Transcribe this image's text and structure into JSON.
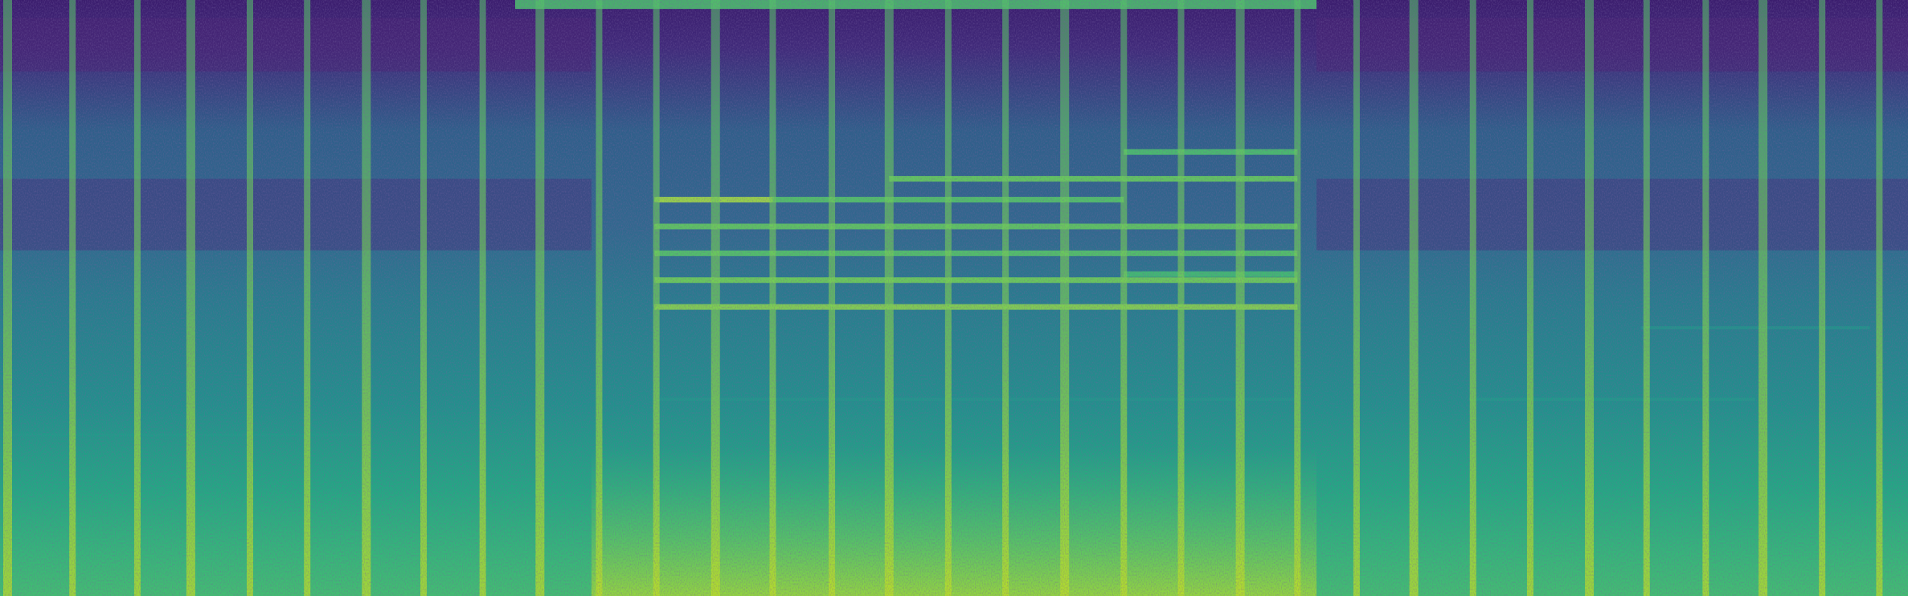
{
  "chart_data": {
    "type": "heatmap",
    "colormap": "viridis",
    "title": "",
    "xlabel": "",
    "ylabel": "",
    "axes_visible": false,
    "grid": false,
    "legend": "none",
    "colors": {
      "low": "#3b1d6e",
      "mid": "#21918c",
      "high": "#dde318"
    },
    "frequency_orientation": "low-bottom",
    "series": [
      {
        "name": "",
        "intensity_notes": {
          "background_level": 0.45,
          "high_band_level": 0.22,
          "low_band_level": 0.58
        }
      }
    ],
    "x_range": [
      0,
      1
    ],
    "y_range": [
      0,
      1
    ],
    "transients": [
      0.004,
      0.038,
      0.072,
      0.1,
      0.131,
      0.161,
      0.192,
      0.222,
      0.253,
      0.283,
      0.314,
      0.344,
      0.375,
      0.405,
      0.436,
      0.466,
      0.497,
      0.527,
      0.558,
      0.589,
      0.619,
      0.65,
      0.68,
      0.711,
      0.741,
      0.772,
      0.802,
      0.833,
      0.863,
      0.894,
      0.924,
      0.955,
      0.985
    ],
    "harmonic_segments": [
      {
        "x_start": 0.343,
        "x_end": 0.405,
        "y": 0.665,
        "intensity": 0.92
      },
      {
        "x_start": 0.343,
        "x_end": 0.68,
        "y": 0.62,
        "intensity": 0.85
      },
      {
        "x_start": 0.343,
        "x_end": 0.68,
        "y": 0.575,
        "intensity": 0.82
      },
      {
        "x_start": 0.343,
        "x_end": 0.68,
        "y": 0.53,
        "intensity": 0.88
      },
      {
        "x_start": 0.343,
        "x_end": 0.68,
        "y": 0.485,
        "intensity": 0.9
      },
      {
        "x_start": 0.405,
        "x_end": 0.589,
        "y": 0.665,
        "intensity": 0.82
      },
      {
        "x_start": 0.466,
        "x_end": 0.68,
        "y": 0.7,
        "intensity": 0.86
      },
      {
        "x_start": 0.589,
        "x_end": 0.68,
        "y": 0.745,
        "intensity": 0.8
      },
      {
        "x_start": 0.589,
        "x_end": 0.68,
        "y": 0.54,
        "intensity": 0.78
      },
      {
        "x_start": 0.0,
        "x_end": 0.19,
        "y": 0.27,
        "intensity": 0.62
      },
      {
        "x_start": 0.345,
        "x_end": 0.68,
        "y": 0.33,
        "intensity": 0.6
      },
      {
        "x_start": 0.77,
        "x_end": 0.92,
        "y": 0.33,
        "intensity": 0.62
      },
      {
        "x_start": 0.86,
        "x_end": 0.98,
        "y": 0.45,
        "intensity": 0.6
      }
    ],
    "bright_regions": [
      {
        "x_start": 0.31,
        "x_end": 0.69,
        "y_start": 0.0,
        "y_end": 0.25,
        "intensity": 0.72
      },
      {
        "x_start": 0.27,
        "x_end": 0.69,
        "y_start": 0.985,
        "y_end": 1.0,
        "intensity": 0.8
      }
    ],
    "dark_regions": [
      {
        "x_start": 0.0,
        "x_end": 0.31,
        "y_start": 0.88,
        "y_end": 0.97,
        "intensity": 0.12
      },
      {
        "x_start": 0.69,
        "x_end": 1.0,
        "y_start": 0.88,
        "y_end": 0.97,
        "intensity": 0.12
      },
      {
        "x_start": 0.0,
        "x_end": 0.31,
        "y_start": 0.58,
        "y_end": 0.7,
        "intensity": 0.18
      },
      {
        "x_start": 0.69,
        "x_end": 1.0,
        "y_start": 0.58,
        "y_end": 0.7,
        "intensity": 0.18
      }
    ]
  }
}
